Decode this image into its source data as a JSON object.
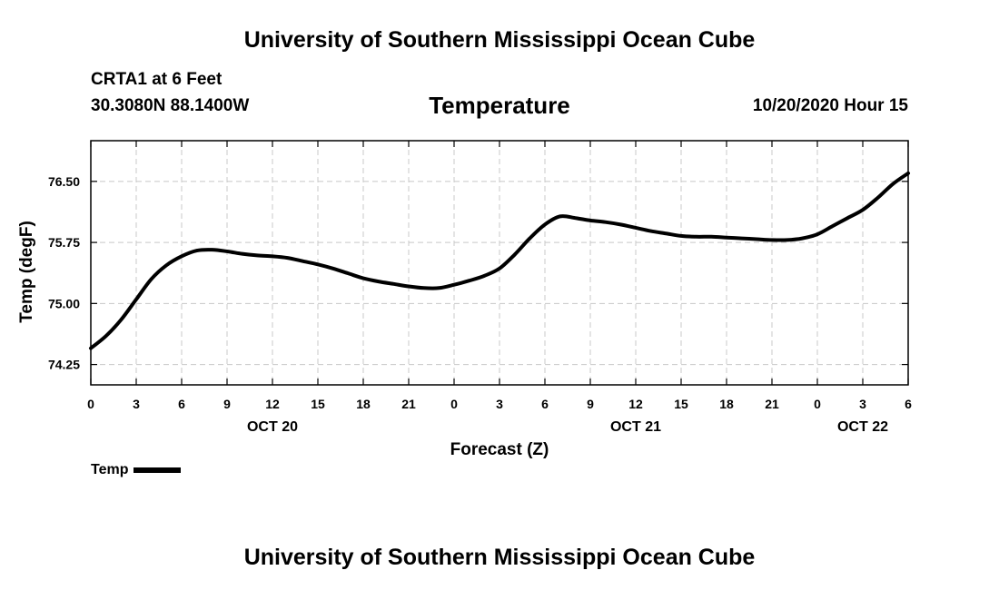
{
  "header": {
    "org_title": "University of Southern Mississippi Ocean Cube",
    "station": "CRTA1 at 6 Feet",
    "coordinates": "30.3080N 88.1400W",
    "variable_title": "Temperature",
    "run_time": "10/20/2020 Hour 15"
  },
  "footer": {
    "org_title": "University of Southern Mississippi Ocean Cube"
  },
  "legend": {
    "label": "Temp"
  },
  "chart_data": {
    "type": "line",
    "title": "Temperature",
    "xlabel": "Forecast (Z)",
    "ylabel": "Temp (degF)",
    "xlim": [
      0,
      54
    ],
    "ylim": [
      74.0,
      77.0
    ],
    "grid": true,
    "legend_position": "bottom-left",
    "x_ticks": [
      0,
      3,
      6,
      9,
      12,
      15,
      18,
      21,
      24,
      27,
      30,
      33,
      36,
      39,
      42,
      45,
      48,
      51,
      54
    ],
    "x_tick_labels": [
      "0",
      "3",
      "6",
      "9",
      "12",
      "15",
      "18",
      "21",
      "0",
      "3",
      "6",
      "9",
      "12",
      "15",
      "18",
      "21",
      "0",
      "3",
      "6"
    ],
    "y_ticks": [
      74.25,
      75.0,
      75.75,
      76.5
    ],
    "y_tick_labels": [
      "74.25",
      "75.00",
      "75.75",
      "76.50"
    ],
    "day_labels": [
      {
        "x": 12,
        "label": "OCT 20"
      },
      {
        "x": 36,
        "label": "OCT 21"
      },
      {
        "x": 51,
        "label": "OCT 22"
      }
    ],
    "series": [
      {
        "name": "Temp",
        "color": "#000000",
        "x": [
          0,
          1,
          2,
          3,
          4,
          5,
          6,
          7,
          8,
          9,
          10,
          11,
          12,
          13,
          14,
          15,
          16,
          17,
          18,
          19,
          20,
          21,
          22,
          23,
          24,
          25,
          26,
          27,
          28,
          29,
          30,
          31,
          32,
          33,
          34,
          35,
          36,
          37,
          38,
          39,
          40,
          41,
          42,
          43,
          44,
          45,
          46,
          47,
          48,
          49,
          50,
          51,
          52,
          53,
          54
        ],
        "y": [
          74.45,
          74.6,
          74.8,
          75.05,
          75.3,
          75.47,
          75.58,
          75.65,
          75.66,
          75.64,
          75.61,
          75.59,
          75.58,
          75.56,
          75.52,
          75.48,
          75.43,
          75.37,
          75.31,
          75.27,
          75.24,
          75.21,
          75.19,
          75.19,
          75.23,
          75.28,
          75.34,
          75.43,
          75.6,
          75.8,
          75.97,
          76.07,
          76.05,
          76.02,
          76.0,
          75.97,
          75.93,
          75.89,
          75.86,
          75.83,
          75.82,
          75.82,
          75.81,
          75.8,
          75.79,
          75.78,
          75.78,
          75.8,
          75.85,
          75.95,
          76.05,
          76.15,
          76.3,
          76.47,
          76.6
        ]
      }
    ]
  }
}
